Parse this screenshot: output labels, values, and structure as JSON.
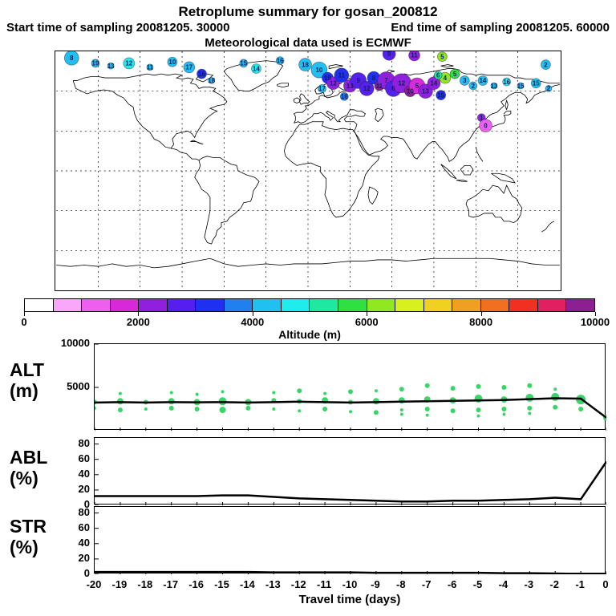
{
  "header": {
    "title": "Retroplume summary for gosan_200812",
    "start_label": "Start time of sampling 20081205. 30000",
    "end_label": "End time of sampling 20081205. 60000",
    "met_label": "Meteorological data used is ECMWF"
  },
  "colorbar": {
    "label": "Altitude (m)",
    "min": 0,
    "max": 10000,
    "ticks": [
      "0",
      "2000",
      "4000",
      "6000",
      "8000",
      "10000"
    ],
    "colors": [
      "#ffffff",
      "#f9a8f9",
      "#ef5fef",
      "#d928d9",
      "#9020dd",
      "#5520ee",
      "#2030f0",
      "#2080f0",
      "#20c0f0",
      "#20ecec",
      "#20e8a0",
      "#30e040",
      "#90e820",
      "#d8f020",
      "#f0d020",
      "#f0a020",
      "#f07020",
      "#f03020",
      "#e02060",
      "#8c2090"
    ]
  },
  "colors": {
    "dot_green": "#3cd46a",
    "line_black": "#000000",
    "bubble_label": "#101d5e"
  },
  "panels": {
    "alt": {
      "name": "ALT",
      "unit": "(m)"
    },
    "abl": {
      "name": "ABL",
      "unit": "(%)"
    },
    "str": {
      "name": "STR",
      "unit": "(%)"
    }
  },
  "xaxis": {
    "label": "Travel time (days)",
    "ticks": [
      -20,
      -19,
      -18,
      -17,
      -16,
      -15,
      -14,
      -13,
      -12,
      -11,
      -10,
      -9,
      -8,
      -7,
      -6,
      -5,
      -4,
      -3,
      -2,
      -1,
      0
    ]
  },
  "chart_data": [
    {
      "type": "scatter",
      "name": "retroplume-map",
      "title": "Retroplume summary for gosan_200812",
      "projection": "equirectangular",
      "xlim": [
        -180,
        180
      ],
      "ylim": [
        -90,
        90
      ],
      "color_scale": {
        "label": "Altitude (m)",
        "min": 0,
        "max": 10000
      },
      "points": [
        {
          "lon": -169,
          "lat": 85,
          "alt": 4400,
          "size": 9,
          "label": "8"
        },
        {
          "lon": -152,
          "lat": 81,
          "alt": 4400,
          "size": 5,
          "label": "19"
        },
        {
          "lon": -141,
          "lat": 79,
          "alt": 4300,
          "size": 4,
          "label": "13"
        },
        {
          "lon": -128,
          "lat": 81,
          "alt": 4500,
          "size": 7,
          "label": "12"
        },
        {
          "lon": -113,
          "lat": 78,
          "alt": 4300,
          "size": 4,
          "label": "11"
        },
        {
          "lon": -97,
          "lat": 82,
          "alt": 4200,
          "size": 6,
          "label": "10"
        },
        {
          "lon": -85,
          "lat": 78,
          "alt": 4300,
          "size": 7,
          "label": "17"
        },
        {
          "lon": -76,
          "lat": 73,
          "alt": 3100,
          "size": 6,
          "label": "16"
        },
        {
          "lon": -69,
          "lat": 68,
          "alt": 4400,
          "size": 4,
          "label": "18"
        },
        {
          "lon": -46,
          "lat": 81,
          "alt": 4200,
          "size": 5,
          "label": "15"
        },
        {
          "lon": -37,
          "lat": 77,
          "alt": 4500,
          "size": 6,
          "label": "14"
        },
        {
          "lon": -20,
          "lat": 83,
          "alt": 4400,
          "size": 5,
          "label": "16"
        },
        {
          "lon": -2,
          "lat": 80,
          "alt": 4400,
          "size": 8,
          "label": "18"
        },
        {
          "lon": 8,
          "lat": 76,
          "alt": 4300,
          "size": 10,
          "label": "10"
        },
        {
          "lon": 14,
          "lat": 70,
          "alt": 3000,
          "size": 7,
          "label": "19"
        },
        {
          "lon": 18,
          "lat": 66,
          "alt": 2400,
          "size": 8,
          "label": "12"
        },
        {
          "lon": 24,
          "lat": 72,
          "alt": 3200,
          "size": 9,
          "label": "11"
        },
        {
          "lon": 30,
          "lat": 64,
          "alt": 2100,
          "size": 8,
          "label": "13"
        },
        {
          "lon": 36,
          "lat": 68,
          "alt": 2900,
          "size": 10,
          "label": "9"
        },
        {
          "lon": 42,
          "lat": 62,
          "alt": 2500,
          "size": 9,
          "label": "12"
        },
        {
          "lon": 47,
          "lat": 70,
          "alt": 3100,
          "size": 8,
          "label": "8"
        },
        {
          "lon": 10,
          "lat": 62,
          "alt": 4300,
          "size": 5,
          "label": "17"
        },
        {
          "lon": 26,
          "lat": 56,
          "alt": 3800,
          "size": 5,
          "label": "16"
        },
        {
          "lon": 51,
          "lat": 64,
          "alt": 9700,
          "size": 6,
          "label": "11"
        },
        {
          "lon": 56,
          "lat": 68,
          "alt": 2300,
          "size": 11,
          "label": "7"
        },
        {
          "lon": 61,
          "lat": 62,
          "alt": 2600,
          "size": 10,
          "label": "6"
        },
        {
          "lon": 67,
          "lat": 66,
          "alt": 2000,
          "size": 12,
          "label": "12"
        },
        {
          "lon": 73,
          "lat": 60,
          "alt": 9800,
          "size": 7,
          "label": "10"
        },
        {
          "lon": 78,
          "lat": 64,
          "alt": 1900,
          "size": 10,
          "label": "5"
        },
        {
          "lon": 84,
          "lat": 60,
          "alt": 2400,
          "size": 9,
          "label": "13"
        },
        {
          "lon": 90,
          "lat": 66,
          "alt": 2200,
          "size": 8,
          "label": "14"
        },
        {
          "lon": 95,
          "lat": 57,
          "alt": 3000,
          "size": 6,
          "label": "15"
        },
        {
          "lon": 58,
          "lat": 88,
          "alt": 2600,
          "size": 8,
          "label": "9"
        },
        {
          "lon": 76,
          "lat": 87,
          "alt": 2300,
          "size": 7,
          "label": "11"
        },
        {
          "lon": 96,
          "lat": 86,
          "alt": 6000,
          "size": 6,
          "label": "5"
        },
        {
          "lon": 98,
          "lat": 70,
          "alt": 6300,
          "size": 7,
          "label": "4"
        },
        {
          "lon": 105,
          "lat": 73,
          "alt": 5800,
          "size": 6,
          "label": "5"
        },
        {
          "lon": 93,
          "lat": 72,
          "alt": 5200,
          "size": 5,
          "label": "6"
        },
        {
          "lon": 112,
          "lat": 68,
          "alt": 4300,
          "size": 6,
          "label": "3"
        },
        {
          "lon": 118,
          "lat": 64,
          "alt": 4400,
          "size": 5,
          "label": "2"
        },
        {
          "lon": 125,
          "lat": 68,
          "alt": 4100,
          "size": 6,
          "label": "14"
        },
        {
          "lon": 133,
          "lat": 64,
          "alt": 4400,
          "size": 4,
          "label": "13"
        },
        {
          "lon": 142,
          "lat": 67,
          "alt": 4500,
          "size": 5,
          "label": "16"
        },
        {
          "lon": 152,
          "lat": 64,
          "alt": 4300,
          "size": 4,
          "label": "15"
        },
        {
          "lon": 163,
          "lat": 66,
          "alt": 4400,
          "size": 6,
          "label": "15"
        },
        {
          "lon": 172,
          "lat": 62,
          "alt": 4200,
          "size": 4,
          "label": "2"
        },
        {
          "lon": 170,
          "lat": 80,
          "alt": 4400,
          "size": 6,
          "label": "2"
        },
        {
          "lon": 124,
          "lat": 40,
          "alt": 2100,
          "size": 5,
          "label": "1"
        },
        {
          "lon": 127,
          "lat": 34,
          "alt": 1300,
          "size": 8,
          "label": "0"
        }
      ]
    },
    {
      "type": "line+scatter",
      "name": "ALT",
      "ylabel": "ALT (m)",
      "ylim": [
        0,
        10000
      ],
      "yticks": [
        10000,
        5000
      ],
      "x": [
        -20,
        -19,
        -18,
        -17,
        -16,
        -15,
        -14,
        -13,
        -12,
        -11,
        -10,
        -9,
        -8,
        -7,
        -6,
        -5,
        -4,
        -3,
        -2,
        -1,
        0
      ],
      "line": [
        3250,
        3300,
        3250,
        3300,
        3280,
        3300,
        3250,
        3300,
        3350,
        3300,
        3250,
        3300,
        3350,
        3400,
        3450,
        3500,
        3550,
        3650,
        3750,
        3700,
        1500
      ],
      "scatter": [
        [
          -20,
          3300,
          3
        ],
        [
          -20,
          2600,
          2
        ],
        [
          -19,
          3400,
          4
        ],
        [
          -19,
          2400,
          3
        ],
        [
          -19,
          4300,
          2
        ],
        [
          -18,
          3300,
          3
        ],
        [
          -18,
          2500,
          2
        ],
        [
          -17,
          3400,
          4
        ],
        [
          -17,
          2600,
          3
        ],
        [
          -17,
          4400,
          2
        ],
        [
          -16,
          3300,
          4
        ],
        [
          -16,
          2500,
          3
        ],
        [
          -16,
          4200,
          2
        ],
        [
          -15,
          3400,
          5
        ],
        [
          -15,
          2400,
          4
        ],
        [
          -15,
          4500,
          2
        ],
        [
          -14,
          3300,
          4
        ],
        [
          -14,
          2600,
          3
        ],
        [
          -13,
          3500,
          3
        ],
        [
          -13,
          2500,
          2
        ],
        [
          -13,
          4400,
          2
        ],
        [
          -12,
          3400,
          3
        ],
        [
          -12,
          2300,
          2
        ],
        [
          -12,
          4600,
          3
        ],
        [
          -11,
          3500,
          4
        ],
        [
          -11,
          2500,
          3
        ],
        [
          -11,
          4300,
          2
        ],
        [
          -10,
          3300,
          3
        ],
        [
          -10,
          2200,
          2
        ],
        [
          -10,
          4500,
          3
        ],
        [
          -9,
          3400,
          4
        ],
        [
          -9,
          2100,
          3
        ],
        [
          -9,
          4600,
          2
        ],
        [
          -8,
          3500,
          4
        ],
        [
          -8,
          2400,
          2
        ],
        [
          -8,
          4800,
          3
        ],
        [
          -8,
          1900,
          2
        ],
        [
          -7,
          3600,
          4
        ],
        [
          -7,
          2500,
          3
        ],
        [
          -7,
          5200,
          3
        ],
        [
          -7,
          1800,
          2
        ],
        [
          -6,
          3500,
          4
        ],
        [
          -6,
          2300,
          3
        ],
        [
          -6,
          4900,
          3
        ],
        [
          -5,
          3700,
          5
        ],
        [
          -5,
          2400,
          3
        ],
        [
          -5,
          5100,
          3
        ],
        [
          -5,
          1700,
          2
        ],
        [
          -4,
          3600,
          4
        ],
        [
          -4,
          2500,
          3
        ],
        [
          -4,
          5000,
          3
        ],
        [
          -4,
          1900,
          2
        ],
        [
          -3,
          3800,
          5
        ],
        [
          -3,
          2600,
          3
        ],
        [
          -3,
          5200,
          3
        ],
        [
          -3,
          2000,
          2
        ],
        [
          -2,
          3900,
          5
        ],
        [
          -2,
          2700,
          3
        ],
        [
          -2,
          4800,
          2
        ],
        [
          -1,
          3600,
          6
        ],
        [
          -1,
          2500,
          3
        ],
        [
          0,
          1500,
          4
        ]
      ]
    },
    {
      "type": "line",
      "name": "ABL",
      "ylabel": "ABL (%)",
      "ylim": [
        0,
        88
      ],
      "yticks": [
        80,
        60,
        40,
        20,
        0
      ],
      "x": [
        -20,
        -19,
        -18,
        -17,
        -16,
        -15,
        -14,
        -13,
        -12,
        -11,
        -10,
        -9,
        -8,
        -7,
        -6,
        -5,
        -4,
        -3,
        -2,
        -1,
        0
      ],
      "values": [
        12,
        12,
        12,
        12,
        12,
        13,
        13,
        11,
        9,
        8,
        7,
        6,
        5,
        5,
        6,
        6,
        7,
        8,
        10,
        8,
        57
      ]
    },
    {
      "type": "line",
      "name": "STR",
      "ylabel": "STR (%)",
      "ylim": [
        0,
        88
      ],
      "yticks": [
        80,
        60,
        40,
        20,
        0
      ],
      "x": [
        -20,
        -19,
        -18,
        -17,
        -16,
        -15,
        -14,
        -13,
        -12,
        -11,
        -10,
        -9,
        -8,
        -7,
        -6,
        -5,
        -4,
        -3,
        -2,
        -1,
        0
      ],
      "values": [
        3,
        3,
        3,
        3,
        3,
        3,
        3,
        2.5,
        2.5,
        2.5,
        2.5,
        2,
        2,
        2,
        2,
        2,
        1.5,
        1.5,
        1,
        0.5,
        0.5
      ]
    }
  ]
}
